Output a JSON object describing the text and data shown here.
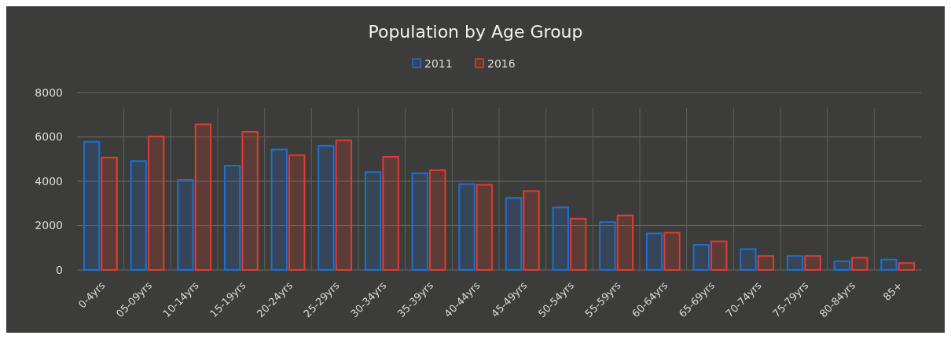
{
  "chart_data": {
    "type": "bar",
    "title": "Population by Age Group",
    "categories": [
      "0-4yrs",
      "05-09yrs",
      "10-14yrs",
      "15-19yrs",
      "20-24yrs",
      "25-29yrs",
      "30-34yrs",
      "35-39yrs",
      "40-44yrs",
      "45-49yrs",
      "50-54yrs",
      "55-59yrs",
      "60-64yrs",
      "65-69yrs",
      "70-74yrs",
      "75-79yrs",
      "80-84yrs",
      "85+"
    ],
    "series": [
      {
        "name": "2011",
        "color": "#1f6fd0",
        "values": [
          5780,
          4910,
          4070,
          4700,
          5430,
          5600,
          4420,
          4360,
          3870,
          3250,
          2820,
          2160,
          1650,
          1130,
          940,
          630,
          390,
          470
        ]
      },
      {
        "name": "2016",
        "color": "#e03c31",
        "values": [
          5070,
          6020,
          6570,
          6230,
          5180,
          5850,
          5100,
          4500,
          3840,
          3560,
          2310,
          2460,
          1680,
          1290,
          630,
          630,
          550,
          310
        ]
      }
    ],
    "ylim": [
      0,
      8000
    ],
    "yticks": [
      0,
      2000,
      4000,
      6000,
      8000
    ],
    "grid": true,
    "legend": "top"
  }
}
